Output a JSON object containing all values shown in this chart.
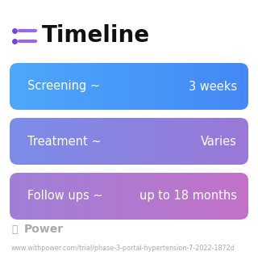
{
  "title": "Timeline",
  "title_fontsize": 20,
  "title_fontweight": "bold",
  "background_color": "#ffffff",
  "rows": [
    {
      "label_left": "Screening ~",
      "label_right": "3 weeks",
      "gradient_start": "#4da8fb",
      "gradient_end": "#4488f5"
    },
    {
      "label_left": "Treatment ~",
      "label_right": "Varies",
      "gradient_start": "#7b8de8",
      "gradient_end": "#9b78d8"
    },
    {
      "label_left": "Follow ups ~",
      "label_right": "up to 18 months",
      "gradient_start": "#a07fd8",
      "gradient_end": "#c272c8"
    }
  ],
  "row_text_color": "#ffffff",
  "row_text_fontsize": 10.5,
  "icon_color_dot": "#7744dd",
  "icon_color_line": "#9966ee",
  "footer_logo_text": "Power",
  "footer_logo_color": "#aaaaaa",
  "footer_url": "www.withpower.com/trial/phase-3-portal-hypertension-7-2022-1872d",
  "footer_fontsize": 5.8,
  "footer_color": "#aaaaaa",
  "title_color": "#111111"
}
